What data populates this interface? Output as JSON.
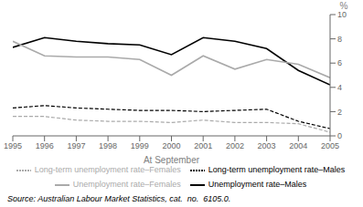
{
  "chart_data": {
    "type": "line",
    "x_label": "At September",
    "y_label": "%",
    "annotations": [
      "Source: Australian Labour Market Statistics, cat.  no.  6105.0."
    ],
    "x": [
      1995,
      1996,
      1997,
      1998,
      1999,
      2000,
      2001,
      2002,
      2003,
      2004,
      2005
    ],
    "xlim": [
      1995,
      2005
    ],
    "xticks": [
      1995,
      1996,
      1997,
      1998,
      1999,
      2000,
      2001,
      2002,
      2003,
      2004,
      2005
    ],
    "ylim": [
      0,
      10
    ],
    "yticks": [
      0,
      2,
      4,
      6,
      8,
      10
    ],
    "grid": false,
    "legend": "bottom",
    "series": [
      {
        "name": "Unemployment rate–Males",
        "color": "#000000",
        "line_style": "solid",
        "values": [
          7.3,
          8.1,
          7.8,
          7.6,
          7.5,
          6.7,
          8.1,
          7.8,
          7.2,
          5.4,
          4.2
        ]
      },
      {
        "name": "Unemployment rate–Females",
        "color": "#aaaaaa",
        "line_style": "solid",
        "values": [
          7.8,
          6.6,
          6.5,
          6.5,
          6.3,
          5.0,
          6.6,
          5.5,
          6.3,
          5.9,
          4.8
        ]
      },
      {
        "name": "Long-term unemployment rate–Males",
        "color": "#000000",
        "line_style": "dashed",
        "values": [
          2.3,
          2.5,
          2.3,
          2.2,
          2.1,
          2.1,
          2.0,
          2.1,
          2.2,
          1.2,
          0.6
        ]
      },
      {
        "name": "Long-term unemployment rate–Females",
        "color": "#aaaaaa",
        "line_style": "dashed",
        "values": [
          1.6,
          1.6,
          1.3,
          1.2,
          1.2,
          1.1,
          1.3,
          1.1,
          1.1,
          1.0,
          0.3
        ]
      }
    ]
  }
}
